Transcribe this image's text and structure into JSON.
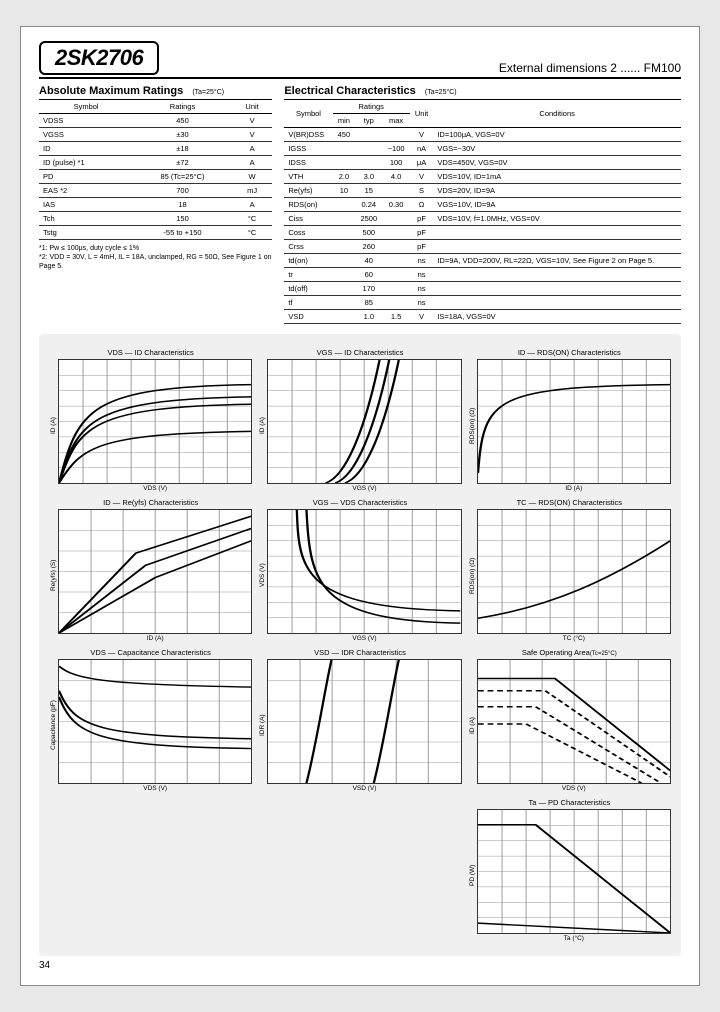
{
  "header": {
    "part_number": "2SK2706",
    "subtitle": "External dimensions 2 ...... FM100"
  },
  "abs_max": {
    "title": "Absolute Maximum Ratings",
    "cond": "(Ta=25°C)",
    "columns": [
      "Symbol",
      "Ratings",
      "Unit"
    ],
    "rows": [
      [
        "VDSS",
        "450",
        "V"
      ],
      [
        "VGSS",
        "±30",
        "V"
      ],
      [
        "ID",
        "±18",
        "A"
      ],
      [
        "ID (pulse) *1",
        "±72",
        "A"
      ],
      [
        "PD",
        "85 (Tc=25°C)",
        "W"
      ],
      [
        "EAS *2",
        "700",
        "mJ"
      ],
      [
        "IAS",
        "18",
        "A"
      ],
      [
        "Tch",
        "150",
        "°C"
      ],
      [
        "Tstg",
        "-55 to +150",
        "°C"
      ]
    ],
    "notes": [
      "*1: Pw ≤ 100μs, duty cycle ≤ 1%",
      "*2: VDD = 30V, L = 4mH, IL = 18A, unclamped, RG = 50Ω, See Figure 1 on Page 5."
    ]
  },
  "elec": {
    "title": "Electrical Characteristics",
    "cond": "(Ta=25°C)",
    "columns": [
      "Symbol",
      "min",
      "typ",
      "max",
      "Unit",
      "Conditions"
    ],
    "rows": [
      [
        "V(BR)DSS",
        "450",
        "",
        "",
        "V",
        "ID=100μA, VGS=0V"
      ],
      [
        "IGSS",
        "",
        "",
        "−100",
        "nA",
        "VGS=−30V"
      ],
      [
        "IDSS",
        "",
        "",
        "100",
        "μA",
        "VDS=450V, VGS=0V"
      ],
      [
        "VTH",
        "2.0",
        "3.0",
        "4.0",
        "V",
        "VDS=10V, ID=1mA"
      ],
      [
        "Re(yfs)",
        "10",
        "15",
        "",
        "S",
        "VDS=20V, ID=9A"
      ],
      [
        "RDS(on)",
        "",
        "0.24",
        "0.30",
        "Ω",
        "VGS=10V, ID=9A"
      ],
      [
        "Ciss",
        "",
        "2500",
        "",
        "pF",
        "VDS=10V, f=1.0MHz, VGS=0V"
      ],
      [
        "Coss",
        "",
        "500",
        "",
        "pF",
        ""
      ],
      [
        "Crss",
        "",
        "260",
        "",
        "pF",
        ""
      ],
      [
        "td(on)",
        "",
        "40",
        "",
        "ns",
        "ID=9A, VDD=200V, RL=22Ω, VGS=10V, See Figure 2 on Page 5."
      ],
      [
        "tr",
        "",
        "60",
        "",
        "ns",
        ""
      ],
      [
        "td(off)",
        "",
        "170",
        "",
        "ns",
        ""
      ],
      [
        "tf",
        "",
        "85",
        "",
        "ns",
        ""
      ],
      [
        "VSD",
        "",
        "1.0",
        "1.5",
        "V",
        "IS=18A, VGS=0V"
      ]
    ]
  },
  "charts": [
    {
      "title": "VDS — ID Characteristics",
      "xlabel": "VDS (V)",
      "ylabel": "ID (A)",
      "type": "sat"
    },
    {
      "title": "VGS — ID Characteristics",
      "xlabel": "VGS (V)",
      "ylabel": "ID (A)",
      "type": "transfer"
    },
    {
      "title": "ID — RDS(ON) Characteristics",
      "xlabel": "ID (A)",
      "ylabel": "RDS(on) (Ω)",
      "type": "rdson"
    },
    {
      "title": "ID — Re(yfs) Characteristics",
      "xlabel": "ID (A)",
      "ylabel": "Re(yfs) (S)",
      "type": "reyfs"
    },
    {
      "title": "VGS — VDS Characteristics",
      "xlabel": "VGS (V)",
      "ylabel": "VDS (V)",
      "type": "vgsvds"
    },
    {
      "title": "TC — RDS(ON) Characteristics",
      "xlabel": "TC (°C)",
      "ylabel": "RDS(on) (Ω)",
      "type": "tcrds"
    },
    {
      "title": "VDS — Capacitance Characteristics",
      "xlabel": "VDS (V)",
      "ylabel": "Capacitance (pF)",
      "type": "cap"
    },
    {
      "title": "VSD — IDR Characteristics",
      "xlabel": "VSD (V)",
      "ylabel": "IDR (A)",
      "type": "diode"
    },
    {
      "title": "Safe Operating Area",
      "xlabel": "VDS (V)",
      "ylabel": "ID (A)",
      "type": "soa",
      "cond": "(Tc=25°C)"
    },
    {
      "title": "Ta — PD Characteristics",
      "xlabel": "Ta (°C)",
      "ylabel": "PD (W)",
      "type": "derate"
    }
  ],
  "colors": {
    "page_bg": "#e8e8e8",
    "charts_bg": "#f0f0f0",
    "line": "#000000",
    "grid": "#999999"
  },
  "page_number": "34"
}
